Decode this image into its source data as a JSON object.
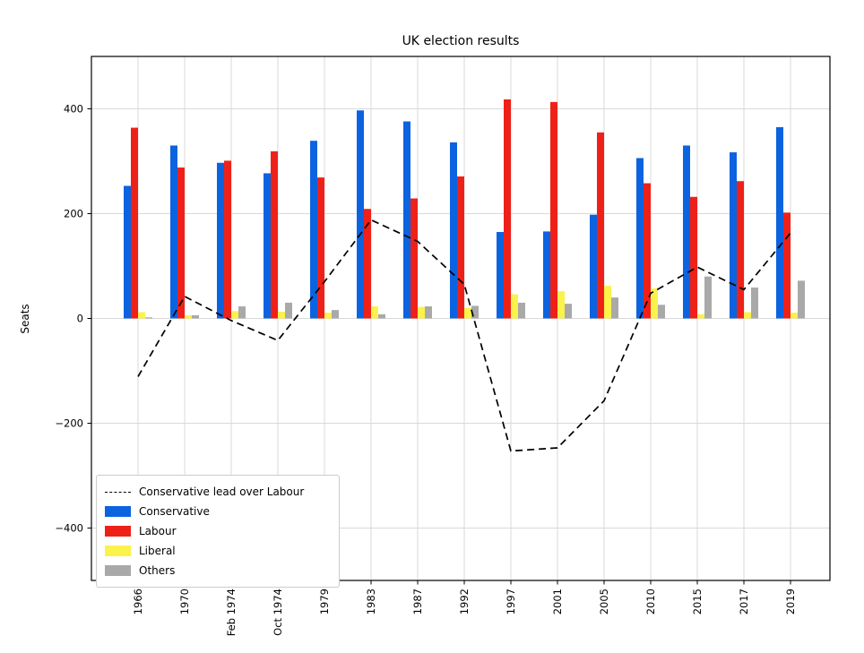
{
  "chart_data": {
    "type": "bar",
    "title": "UK election results",
    "xlabel": "",
    "ylabel": "Seats",
    "categories": [
      "1966",
      "1970",
      "Feb 1974",
      "Oct 1974",
      "1979",
      "1983",
      "1987",
      "1992",
      "1997",
      "2001",
      "2005",
      "2010",
      "2015",
      "2017",
      "2019"
    ],
    "series": [
      {
        "name": "Conservative",
        "kind": "bar",
        "color": "#0b63e0",
        "values": [
          253,
          330,
          297,
          277,
          339,
          397,
          376,
          336,
          165,
          166,
          198,
          306,
          330,
          317,
          365
        ]
      },
      {
        "name": "Labour",
        "kind": "bar",
        "color": "#ee2119",
        "values": [
          364,
          288,
          301,
          319,
          269,
          209,
          229,
          271,
          418,
          413,
          355,
          258,
          232,
          262,
          202
        ]
      },
      {
        "name": "Liberal",
        "kind": "bar",
        "color": "#fbf24b",
        "values": [
          12,
          6,
          14,
          13,
          11,
          23,
          22,
          20,
          46,
          52,
          62,
          57,
          8,
          12,
          11
        ]
      },
      {
        "name": "Others",
        "kind": "bar",
        "color": "#a9a9a9",
        "values": [
          2,
          6,
          23,
          30,
          16,
          8,
          23,
          24,
          30,
          28,
          40,
          26,
          80,
          59,
          72
        ]
      },
      {
        "name": "Conservative lead over Labour",
        "kind": "line",
        "color": "#000000",
        "linestyle": "dashed",
        "values": [
          -111,
          42,
          -4,
          -42,
          70,
          188,
          147,
          65,
          -253,
          -247,
          -157,
          48,
          98,
          55,
          163
        ]
      }
    ],
    "ylim": [
      -500,
      500
    ],
    "yticks": [
      400,
      200,
      0,
      -200,
      -400
    ],
    "grid": true,
    "legend": {
      "position": "lower left",
      "order": [
        "Conservative lead over Labour",
        "Conservative",
        "Labour",
        "Liberal",
        "Others"
      ]
    }
  },
  "colors": {
    "background": "#ffffff",
    "axis": "#000000",
    "grid": "#d9d9d9",
    "legend_border": "#cccccc",
    "tick_label": "#000000"
  }
}
